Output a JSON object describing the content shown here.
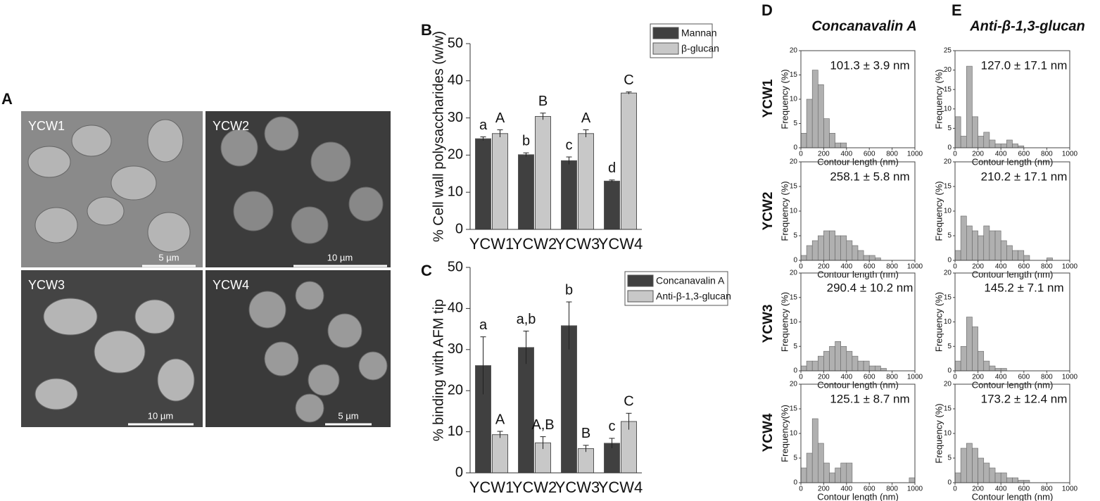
{
  "panels": {
    "A": {
      "label": "A",
      "images": [
        {
          "name": "YCW1",
          "scale": "5 µm"
        },
        {
          "name": "YCW2",
          "scale": "10 µm"
        },
        {
          "name": "YCW3",
          "scale": "10 µm"
        },
        {
          "name": "YCW4",
          "scale": "5 µm"
        }
      ]
    },
    "B": {
      "label": "B"
    },
    "C": {
      "label": "C"
    },
    "D": {
      "label": "D",
      "title": "Concanavalin A"
    },
    "E": {
      "label": "E",
      "title": "Anti-β-1,3-glucan"
    },
    "row_labels": [
      "YCW1",
      "YCW2",
      "YCW3",
      "YCW4"
    ]
  },
  "chart_data": [
    {
      "type": "bar",
      "ylabel": "% Cell wall polysaccharides (w/w)",
      "categories": [
        "YCW1",
        "YCW2",
        "YCW3",
        "YCW4"
      ],
      "ylim": [
        0,
        50
      ],
      "yticks": [
        0,
        10,
        20,
        30,
        40,
        50
      ],
      "legend": "top-right",
      "series": [
        {
          "name": "Mannan",
          "color": "#404040",
          "values": [
            24.4,
            20.1,
            18.5,
            13.0
          ],
          "errors": [
            0.5,
            0.5,
            1.0,
            0.3
          ],
          "letters": [
            "a",
            "b",
            "c",
            "d"
          ]
        },
        {
          "name": "β-glucan",
          "color": "#c8c8c8",
          "values": [
            25.8,
            30.4,
            25.8,
            36.7
          ],
          "errors": [
            1.0,
            0.9,
            1.0,
            0.3
          ],
          "letters": [
            "A",
            "B",
            "A",
            "C"
          ]
        }
      ]
    },
    {
      "type": "bar",
      "ylabel": "% binding with AFM tip",
      "categories": [
        "YCW1",
        "YCW2",
        "YCW3",
        "YCW4"
      ],
      "ylim": [
        0,
        50
      ],
      "yticks": [
        0,
        10,
        20,
        30,
        40,
        50
      ],
      "legend": "top-right",
      "series": [
        {
          "name": "Concanavalin A",
          "color": "#404040",
          "values": [
            26.1,
            30.5,
            35.8,
            7.2
          ],
          "errors": [
            7.0,
            4.0,
            5.8,
            1.2
          ],
          "letters": [
            "a",
            "a,b",
            "b",
            "c"
          ]
        },
        {
          "name": "Anti-β-1,3-glucan",
          "color": "#c8c8c8",
          "values": [
            9.3,
            7.3,
            5.9,
            12.5
          ],
          "errors": [
            0.8,
            1.5,
            0.8,
            2.0
          ],
          "letters": [
            "A",
            "A,B",
            "B",
            "C"
          ]
        }
      ]
    },
    {
      "type": "histogram",
      "annotation": "101.3 ± 3.9 nm",
      "ylabel": "Frequency (%)",
      "xlabel": "Contour length (nm)",
      "bins": [
        0,
        50,
        100,
        150,
        200,
        250,
        300,
        350,
        400,
        450,
        500,
        550,
        600,
        650,
        700,
        750,
        800,
        850,
        900,
        950,
        1000
      ],
      "values": [
        3,
        10,
        16,
        13,
        6,
        3,
        1,
        1,
        0,
        0,
        0,
        0,
        0,
        0,
        0,
        0,
        0,
        0,
        0,
        0
      ],
      "xlim": [
        0,
        1000
      ],
      "xticks": [
        0,
        200,
        400,
        600,
        800,
        1000
      ],
      "ylim": [
        0,
        20
      ],
      "yticks": [
        0,
        5,
        10,
        15,
        20
      ]
    },
    {
      "type": "histogram",
      "annotation": "258.1 ± 5.8 nm",
      "ylabel": "Frequency (%)",
      "xlabel": "Contour length (nm)",
      "bins": [
        0,
        50,
        100,
        150,
        200,
        250,
        300,
        350,
        400,
        450,
        500,
        550,
        600,
        650,
        700,
        750,
        800,
        850,
        900,
        950,
        1000
      ],
      "values": [
        1,
        3,
        4,
        5,
        6,
        6,
        5,
        5,
        4,
        3,
        2,
        1,
        1,
        0.5,
        0,
        0,
        0,
        0,
        0,
        0
      ],
      "xlim": [
        0,
        1000
      ],
      "xticks": [
        0,
        200,
        400,
        600,
        800,
        1000
      ],
      "ylim": [
        0,
        20
      ],
      "yticks": [
        0,
        5,
        10,
        15,
        20
      ]
    },
    {
      "type": "histogram",
      "annotation": "290.4 ± 10.2 nm",
      "ylabel": "Frequency (%)",
      "xlabel": "Contour length (nm)",
      "bins": [
        0,
        50,
        100,
        150,
        200,
        250,
        300,
        350,
        400,
        450,
        500,
        550,
        600,
        650,
        700,
        750,
        800,
        850,
        900,
        950,
        1000
      ],
      "values": [
        1,
        2,
        2,
        3,
        4,
        5,
        6,
        5,
        4,
        3,
        2,
        2,
        1,
        1,
        0.5,
        0,
        0,
        0,
        0,
        0
      ],
      "xlim": [
        0,
        1000
      ],
      "xticks": [
        0,
        200,
        400,
        600,
        800,
        1000
      ],
      "ylim": [
        0,
        20
      ],
      "yticks": [
        0,
        5,
        10,
        15,
        20
      ]
    },
    {
      "type": "histogram",
      "annotation": "125.1 ± 8.7 nm",
      "ylabel": "Frequency(%)",
      "xlabel": "Contour length (nm)",
      "bins": [
        0,
        50,
        100,
        150,
        200,
        250,
        300,
        350,
        400,
        450,
        500,
        550,
        600,
        650,
        700,
        750,
        800,
        850,
        900,
        950,
        1000
      ],
      "values": [
        3,
        6,
        13,
        8,
        4,
        2,
        3,
        4,
        4,
        0,
        0,
        0,
        0,
        0,
        0,
        0,
        0,
        0,
        0,
        1
      ],
      "xlim": [
        0,
        1000
      ],
      "xticks": [
        0,
        200,
        400,
        600,
        800,
        1000
      ],
      "ylim": [
        0,
        20
      ],
      "yticks": [
        0,
        5,
        10,
        15,
        20
      ]
    },
    {
      "type": "histogram",
      "annotation": "127.0 ± 17.1 nm",
      "ylabel": "Frequency (%)",
      "xlabel": "Contour length (nm)",
      "bins": [
        0,
        50,
        100,
        150,
        200,
        250,
        300,
        350,
        400,
        450,
        500,
        550,
        600,
        650,
        700,
        750,
        800,
        850,
        900,
        950,
        1000
      ],
      "values": [
        8,
        3,
        21,
        8,
        3,
        4,
        2,
        1,
        1,
        2,
        1,
        0.5,
        0,
        0,
        0,
        0,
        0,
        0,
        0,
        0
      ],
      "xlim": [
        0,
        1000
      ],
      "xticks": [
        0,
        200,
        400,
        600,
        800,
        1000
      ],
      "ylim": [
        0,
        25
      ],
      "yticks": [
        0,
        5,
        10,
        15,
        20,
        25
      ]
    },
    {
      "type": "histogram",
      "annotation": "210.2 ± 17.1 nm",
      "ylabel": "Frequency (%)",
      "xlabel": "Contour length (nm)",
      "bins": [
        0,
        50,
        100,
        150,
        200,
        250,
        300,
        350,
        400,
        450,
        500,
        550,
        600,
        650,
        700,
        750,
        800,
        850,
        900,
        950,
        1000
      ],
      "values": [
        2,
        9,
        7,
        6,
        5,
        7,
        6,
        6,
        4,
        3,
        2,
        2,
        1,
        0,
        0,
        0,
        0.5,
        0,
        0,
        0
      ],
      "xlim": [
        0,
        1000
      ],
      "xticks": [
        0,
        200,
        400,
        600,
        800,
        1000
      ],
      "ylim": [
        0,
        20
      ],
      "yticks": [
        0,
        5,
        10,
        15,
        20
      ]
    },
    {
      "type": "histogram",
      "annotation": "145.2 ± 7.1 nm",
      "ylabel": "Frequency (%)",
      "xlabel": "Contour length (nm)",
      "bins": [
        0,
        50,
        100,
        150,
        200,
        250,
        300,
        350,
        400,
        450,
        500,
        550,
        600,
        650,
        700,
        750,
        800,
        850,
        900,
        950,
        1000
      ],
      "values": [
        2,
        5,
        11,
        9,
        4,
        2,
        1,
        0.5,
        0.5,
        0,
        0,
        0,
        0,
        0,
        0,
        0,
        0,
        0,
        0,
        0
      ],
      "xlim": [
        0,
        1000
      ],
      "xticks": [
        0,
        200,
        400,
        600,
        800,
        1000
      ],
      "ylim": [
        0,
        20
      ],
      "yticks": [
        0,
        5,
        10,
        15,
        20
      ]
    },
    {
      "type": "histogram",
      "annotation": "173.2 ± 12.4 nm",
      "ylabel": "Frequency (%)",
      "xlabel": "Contour length (nm)",
      "bins": [
        0,
        50,
        100,
        150,
        200,
        250,
        300,
        350,
        400,
        450,
        500,
        550,
        600,
        650,
        700,
        750,
        800,
        850,
        900,
        950,
        1000
      ],
      "values": [
        2,
        7,
        8,
        7,
        5,
        4,
        3,
        2,
        2,
        1,
        1,
        0.5,
        0.5,
        0,
        0,
        0,
        0,
        0,
        0,
        0
      ],
      "xlim": [
        0,
        1000
      ],
      "xticks": [
        0,
        200,
        400,
        600,
        800,
        1000
      ],
      "ylim": [
        0,
        20
      ],
      "yticks": [
        0,
        5,
        10,
        15,
        20
      ]
    }
  ]
}
